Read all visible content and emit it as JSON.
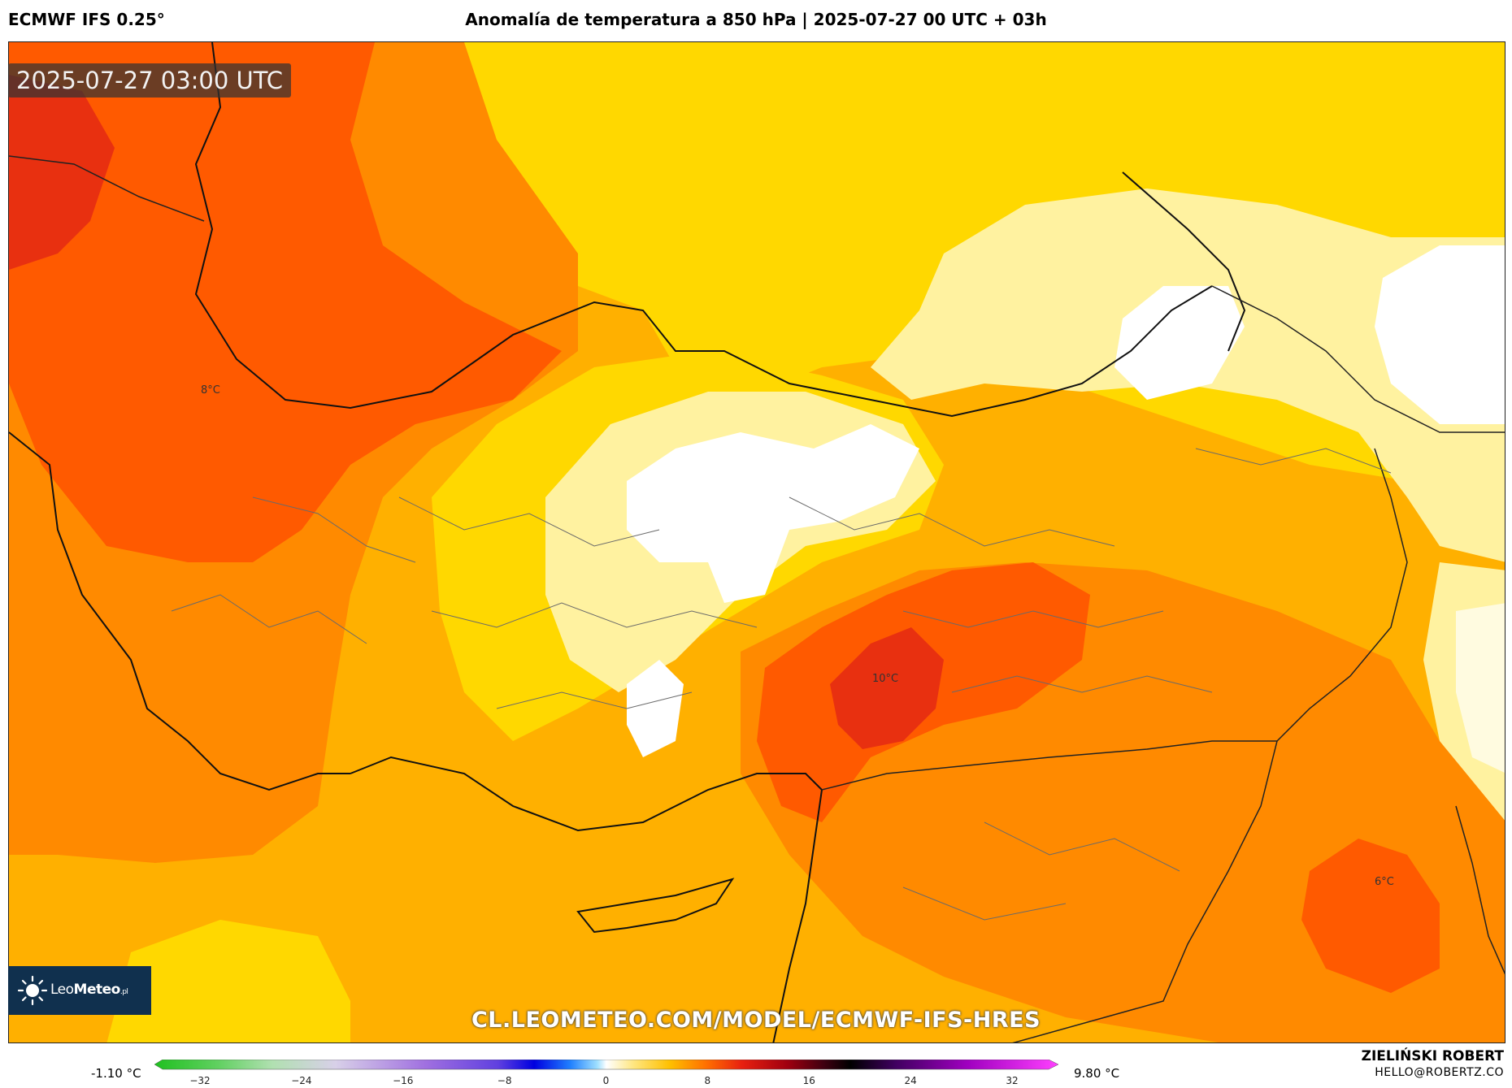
{
  "header": {
    "model_label": "ECMWF IFS 0.25°",
    "title": "Anomalía de temperatura a 850 hPa | 2025-07-27 00 UTC + 03h"
  },
  "map": {
    "valid_time": "2025-07-27 03:00 UTC",
    "contour_labels": [
      "8°C",
      "10°C",
      "6°C"
    ],
    "source_url": "CL.LEOMETEO.COM/MODEL/ECMWF-IFS-HRES",
    "logo": {
      "icon": "sun-icon",
      "text_light": "Leo",
      "text_bold": "Meteo",
      "suffix": ".pl"
    },
    "colors": {
      "red": "#e83010",
      "dark_orange": "#ff5a00",
      "orange": "#ff8a00",
      "amber": "#ffb000",
      "yellow": "#ffd800",
      "light_yellow": "#fff2a0",
      "pale": "#fffbe0",
      "white": "#ffffff",
      "border": "#111111"
    }
  },
  "colorbar": {
    "min_label": "-1.10 °C",
    "max_label": "9.80 °C",
    "ticks": [
      "−32",
      "−24",
      "−16",
      "−8",
      "0",
      "8",
      "16",
      "24",
      "32"
    ]
  },
  "author": {
    "name": "ZIELIŃSKI ROBERT",
    "email": "HELLO@ROBERTZ.CO"
  }
}
